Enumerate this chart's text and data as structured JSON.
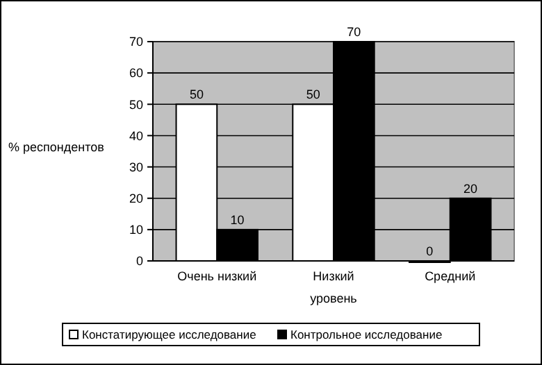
{
  "chart_data": {
    "type": "bar",
    "xlabel": "уровень",
    "ylabel": "% респондентов",
    "categories": [
      "Очень низкий",
      "Низкий",
      "Средний"
    ],
    "series": [
      {
        "name": "Констатирующее исследование",
        "color": "#ffffff",
        "values": [
          50,
          50,
          0
        ]
      },
      {
        "name": "Контрольное исследование",
        "color": "#000000",
        "values": [
          10,
          70,
          20
        ]
      }
    ],
    "ylim": [
      0,
      70
    ],
    "yticks": [
      0,
      10,
      20,
      30,
      40,
      50,
      60,
      70
    ],
    "grid": "y",
    "legend": "bottom",
    "data_labels": true
  }
}
